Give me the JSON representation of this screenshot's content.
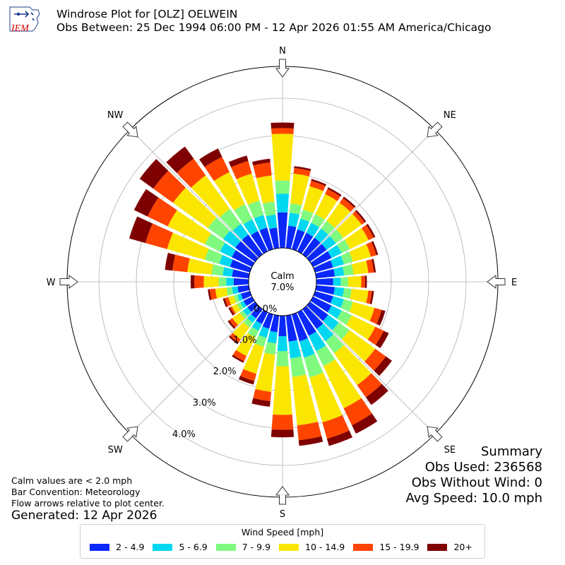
{
  "header": {
    "title_line1": "Windrose Plot for [OLZ] OELWEIN",
    "title_line2": "Obs Between: 25 Dec 1994 06:00 PM - 12 Apr 2026 01:55 AM America/Chicago",
    "logo_text": "IEM"
  },
  "summary": {
    "heading": "Summary",
    "obs_used": "Obs Used: 236568",
    "obs_without_wind": "Obs Without Wind: 0",
    "avg_speed": "Avg Speed: 10.0 mph"
  },
  "notes": {
    "calm_note": "Calm values are < 2.0 mph",
    "bar_convention": "Bar Convention: Meteorology",
    "flow_arrows": "Flow arrows relative to plot center.",
    "generated": "Generated: 12 Apr 2026"
  },
  "chart_data": {
    "type": "windrose",
    "calm_label": "Calm",
    "calm_value": "7.0%",
    "compass_labels": [
      "N",
      "NE",
      "E",
      "SE",
      "S",
      "SW",
      "W",
      "NW"
    ],
    "radial_tick_labels": [
      "0.0%",
      "1.0%",
      "2.0%",
      "3.0%",
      "4.0%"
    ],
    "radial_ticks": [
      0,
      1,
      2,
      3,
      4
    ],
    "rlim": [
      0,
      5.0
    ],
    "grid": true,
    "legend": {
      "title": "Wind Speed [mph]",
      "placement": "bottom-center",
      "bins": [
        {
          "label": "2 - 4.9",
          "color": "#0a28fa"
        },
        {
          "label": "5 - 6.9",
          "color": "#00d7f0"
        },
        {
          "label": "7 - 9.9",
          "color": "#7ffa7f"
        },
        {
          "label": "10 - 14.9",
          "color": "#fae600"
        },
        {
          "label": "15 - 19.9",
          "color": "#ff4400"
        },
        {
          "label": "20+",
          "color": "#7f0000"
        }
      ]
    },
    "directions_deg": [
      0,
      10,
      20,
      30,
      40,
      50,
      60,
      70,
      80,
      90,
      100,
      110,
      120,
      130,
      140,
      150,
      160,
      170,
      180,
      190,
      200,
      210,
      220,
      230,
      240,
      250,
      260,
      270,
      280,
      290,
      300,
      310,
      320,
      330,
      340,
      350
    ],
    "cumulative_percent": [
      [
        0.95,
        1.45,
        1.8,
        3.05,
        3.2,
        3.35
      ],
      [
        0.6,
        0.95,
        1.2,
        2.0,
        2.15,
        2.2
      ],
      [
        0.55,
        0.85,
        1.1,
        1.75,
        1.9,
        1.95
      ],
      [
        0.55,
        0.85,
        1.1,
        1.7,
        1.85,
        1.9
      ],
      [
        0.55,
        0.85,
        1.1,
        1.7,
        1.85,
        1.9
      ],
      [
        0.55,
        0.85,
        1.1,
        1.7,
        1.8,
        1.85
      ],
      [
        0.55,
        0.85,
        1.1,
        1.65,
        1.8,
        1.85
      ],
      [
        0.5,
        0.8,
        1.05,
        1.55,
        1.7,
        1.75
      ],
      [
        0.5,
        0.75,
        1.0,
        1.4,
        1.55,
        1.6
      ],
      [
        0.45,
        0.65,
        0.85,
        1.2,
        1.3,
        1.35
      ],
      [
        0.5,
        0.75,
        0.95,
        1.4,
        1.5,
        1.55
      ],
      [
        0.5,
        0.8,
        1.05,
        1.65,
        1.85,
        1.95
      ],
      [
        0.55,
        0.85,
        1.15,
        1.85,
        2.1,
        2.25
      ],
      [
        0.6,
        0.95,
        1.3,
        2.15,
        2.5,
        2.7
      ],
      [
        0.65,
        1.05,
        1.45,
        2.5,
        2.9,
        3.15
      ],
      [
        0.7,
        1.15,
        1.6,
        2.85,
        3.35,
        3.6
      ],
      [
        0.75,
        1.2,
        1.75,
        3.0,
        3.45,
        3.65
      ],
      [
        0.7,
        1.15,
        1.65,
        2.95,
        3.35,
        3.5
      ],
      [
        0.55,
        0.95,
        1.35,
        2.65,
        3.05,
        3.25
      ],
      [
        0.45,
        0.75,
        1.05,
        2.05,
        2.3,
        2.45
      ],
      [
        0.4,
        0.65,
        0.9,
        1.65,
        1.85,
        1.95
      ],
      [
        0.35,
        0.55,
        0.75,
        1.3,
        1.45,
        1.5
      ],
      [
        0.3,
        0.45,
        0.6,
        1.0,
        1.1,
        1.15
      ],
      [
        0.25,
        0.4,
        0.5,
        0.75,
        0.85,
        0.9
      ],
      [
        0.25,
        0.35,
        0.45,
        0.6,
        0.65,
        0.7
      ],
      [
        0.25,
        0.35,
        0.45,
        0.6,
        0.7,
        0.75
      ],
      [
        0.3,
        0.45,
        0.6,
        0.9,
        1.05,
        1.1
      ],
      [
        0.4,
        0.6,
        0.8,
        1.2,
        1.45,
        1.55
      ],
      [
        0.45,
        0.7,
        1.0,
        1.65,
        2.05,
        2.25
      ],
      [
        0.55,
        0.85,
        1.25,
        2.3,
        2.9,
        3.35
      ],
      [
        0.6,
        0.95,
        1.4,
        2.5,
        3.1,
        3.5
      ],
      [
        0.65,
        1.05,
        1.55,
        2.7,
        3.35,
        3.8
      ],
      [
        0.65,
        1.0,
        1.5,
        2.6,
        3.15,
        3.55
      ],
      [
        0.6,
        0.95,
        1.4,
        2.35,
        2.8,
        3.05
      ],
      [
        0.6,
        0.95,
        1.35,
        2.1,
        2.45,
        2.6
      ],
      [
        0.55,
        0.9,
        1.25,
        1.95,
        2.3,
        2.4
      ]
    ]
  }
}
